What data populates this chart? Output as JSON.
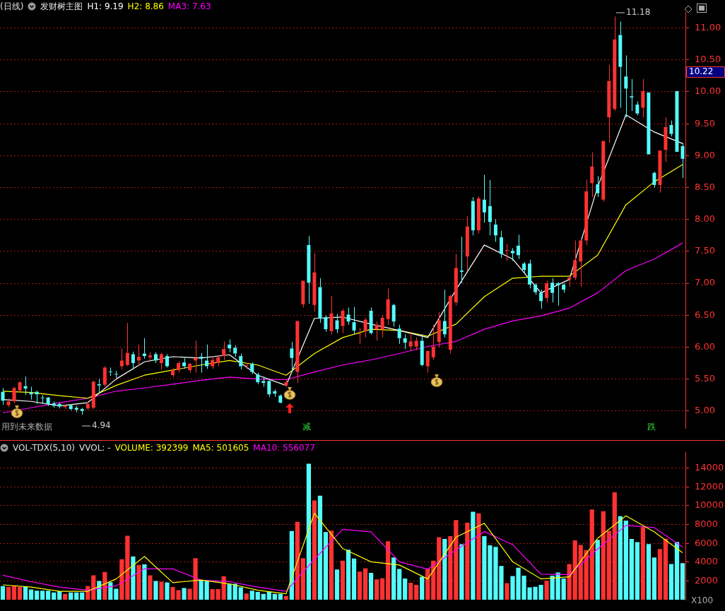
{
  "chart_data": [
    {
      "type": "candlestick",
      "title": "发财树主图",
      "subtitle": "(日线)",
      "categories": [
        null,
        null,
        null,
        null,
        null,
        null,
        null,
        null,
        null,
        null,
        null,
        null,
        null,
        null,
        null,
        null,
        null,
        null,
        null,
        null,
        null,
        null,
        null,
        null,
        null,
        null,
        null,
        null,
        null,
        null,
        null,
        null,
        null,
        null,
        null,
        null,
        null,
        null,
        null,
        null,
        null,
        null,
        null,
        null,
        null,
        null,
        null,
        null,
        null,
        null,
        null,
        null,
        null,
        null,
        null,
        null,
        null,
        null,
        null,
        null,
        null,
        null,
        null,
        null,
        null,
        null,
        null,
        null,
        null,
        null,
        null,
        null,
        null,
        null,
        null,
        null,
        null,
        null,
        null,
        null,
        null,
        null,
        null,
        null,
        null,
        null,
        null,
        null,
        null,
        null,
        null,
        null,
        null,
        null,
        null,
        null,
        null,
        null,
        null,
        null,
        null,
        null,
        null,
        null,
        null,
        null,
        null,
        null,
        null,
        null,
        null,
        null,
        null,
        null,
        null,
        null,
        null,
        null,
        null,
        null,
        null
      ],
      "ohlc": [
        [
          5.3,
          5.36,
          5.1,
          5.16
        ],
        [
          5.09,
          5.2,
          5.06,
          5.15
        ],
        [
          5.15,
          5.38,
          5.12,
          5.36
        ],
        [
          5.32,
          5.46,
          5.3,
          5.45
        ],
        [
          5.39,
          5.54,
          5.25,
          5.35
        ],
        [
          5.29,
          5.38,
          5.18,
          5.26
        ],
        [
          5.3,
          5.32,
          5.11,
          5.26
        ],
        [
          5.21,
          5.25,
          5.11,
          5.2
        ],
        [
          5.21,
          5.22,
          5.08,
          5.11
        ],
        [
          5.12,
          5.15,
          5.05,
          5.08
        ],
        [
          5.11,
          5.13,
          5.04,
          5.07
        ],
        [
          5.06,
          5.1,
          5.03,
          5.08
        ],
        [
          5.09,
          5.1,
          5.01,
          5.03
        ],
        [
          5.05,
          5.08,
          4.98,
          5.02
        ],
        [
          5.03,
          5.05,
          4.94,
          5.0
        ],
        [
          5.04,
          5.15,
          5.02,
          5.11
        ],
        [
          5.05,
          5.47,
          5.03,
          5.46
        ],
        [
          5.42,
          5.5,
          5.28,
          5.4
        ],
        [
          5.41,
          5.7,
          5.38,
          5.68
        ],
        [
          5.62,
          5.68,
          5.55,
          5.61
        ],
        [
          5.58,
          5.63,
          5.52,
          5.57
        ],
        [
          5.7,
          5.98,
          5.65,
          5.79
        ],
        [
          5.72,
          6.38,
          5.7,
          5.91
        ],
        [
          5.89,
          5.93,
          5.65,
          5.75
        ],
        [
          5.79,
          6.04,
          5.71,
          5.85
        ],
        [
          5.9,
          6.14,
          5.82,
          5.86
        ],
        [
          5.84,
          5.92,
          5.8,
          5.87
        ],
        [
          5.89,
          5.92,
          5.75,
          5.79
        ],
        [
          5.75,
          5.91,
          5.65,
          5.89
        ],
        [
          5.86,
          5.89,
          5.68,
          5.7
        ],
        [
          5.56,
          5.67,
          5.53,
          5.64
        ],
        [
          5.64,
          5.78,
          5.6,
          5.75
        ],
        [
          5.76,
          5.83,
          5.66,
          5.7
        ],
        [
          5.64,
          5.75,
          5.6,
          5.74
        ],
        [
          5.79,
          6.1,
          5.6,
          5.83
        ],
        [
          5.85,
          5.91,
          5.6,
          5.82
        ],
        [
          5.79,
          6.04,
          5.66,
          5.7
        ],
        [
          5.7,
          5.86,
          5.66,
          5.8
        ],
        [
          5.75,
          5.86,
          5.7,
          5.84
        ],
        [
          5.86,
          6.09,
          5.8,
          5.97
        ],
        [
          6.04,
          6.12,
          5.92,
          5.98
        ],
        [
          5.99,
          6.03,
          5.85,
          5.9
        ],
        [
          5.86,
          5.9,
          5.65,
          5.7
        ],
        [
          5.71,
          5.75,
          5.66,
          5.72
        ],
        [
          5.74,
          5.76,
          5.58,
          5.61
        ],
        [
          5.57,
          5.6,
          5.42,
          5.45
        ],
        [
          5.47,
          5.54,
          5.38,
          5.44
        ],
        [
          5.47,
          5.48,
          5.22,
          5.26
        ],
        [
          5.31,
          5.34,
          5.22,
          5.27
        ],
        [
          5.24,
          5.26,
          5.12,
          5.13
        ],
        [
          5.4,
          5.5,
          5.38,
          5.45
        ],
        [
          5.98,
          6.08,
          5.61,
          5.83
        ],
        [
          5.61,
          6.41,
          5.44,
          6.41
        ],
        [
          6.67,
          7.04,
          6.62,
          7.04
        ],
        [
          7.6,
          7.74,
          6.68,
          7.01
        ],
        [
          6.66,
          7.47,
          6.55,
          7.17
        ],
        [
          6.94,
          7.08,
          6.38,
          6.45
        ],
        [
          6.47,
          6.5,
          6.24,
          6.28
        ],
        [
          6.25,
          6.8,
          6.2,
          6.53
        ],
        [
          6.42,
          6.52,
          6.22,
          6.28
        ],
        [
          6.33,
          6.6,
          6.22,
          6.57
        ],
        [
          6.51,
          6.62,
          6.35,
          6.4
        ],
        [
          6.39,
          6.63,
          6.2,
          6.26
        ],
        [
          6.2,
          6.3,
          6.05,
          6.21
        ],
        [
          6.25,
          6.46,
          6.15,
          6.43
        ],
        [
          6.57,
          6.62,
          6.2,
          6.22
        ],
        [
          6.28,
          6.4,
          6.1,
          6.35
        ],
        [
          6.28,
          6.5,
          6.15,
          6.46
        ],
        [
          6.44,
          6.92,
          6.35,
          6.75
        ],
        [
          6.66,
          6.68,
          6.32,
          6.4
        ],
        [
          6.29,
          6.35,
          6.05,
          6.14
        ],
        [
          6.14,
          6.2,
          5.97,
          6.07
        ],
        [
          6.01,
          6.22,
          5.95,
          6.09
        ],
        [
          6.01,
          6.15,
          5.95,
          6.1
        ],
        [
          6.1,
          6.2,
          5.7,
          5.72
        ],
        [
          5.7,
          5.94,
          5.6,
          5.94
        ],
        [
          5.84,
          6.35,
          5.8,
          6.01
        ],
        [
          6.08,
          6.55,
          6.0,
          6.42
        ],
        [
          6.41,
          6.9,
          6.15,
          6.2
        ],
        [
          5.96,
          6.82,
          5.9,
          6.8
        ],
        [
          6.7,
          7.46,
          6.65,
          7.24
        ],
        [
          7.2,
          7.73,
          7.0,
          7.18
        ],
        [
          7.42,
          8.05,
          7.2,
          7.89
        ],
        [
          8.29,
          8.35,
          7.75,
          7.83
        ],
        [
          7.83,
          8.36,
          7.78,
          8.33
        ],
        [
          8.31,
          8.7,
          7.95,
          8.11
        ],
        [
          8.21,
          8.62,
          7.75,
          7.96
        ],
        [
          7.92,
          8.0,
          7.65,
          7.75
        ],
        [
          7.72,
          7.82,
          7.4,
          7.46
        ],
        [
          7.51,
          7.62,
          7.35,
          7.52
        ],
        [
          7.51,
          7.55,
          7.35,
          7.47
        ],
        [
          7.59,
          7.76,
          7.38,
          7.44
        ],
        [
          7.31,
          7.33,
          7.15,
          7.21
        ],
        [
          7.31,
          7.37,
          6.92,
          6.98
        ],
        [
          6.98,
          7.0,
          6.82,
          6.86
        ],
        [
          6.85,
          6.9,
          6.6,
          6.72
        ],
        [
          6.77,
          7.04,
          6.7,
          7.0
        ],
        [
          7.01,
          7.08,
          6.7,
          6.85
        ],
        [
          7.0,
          7.02,
          6.65,
          6.97
        ],
        [
          6.98,
          7.0,
          6.85,
          6.9
        ],
        [
          7.06,
          7.12,
          6.95,
          7.09
        ],
        [
          7.09,
          7.67,
          7.05,
          7.36
        ],
        [
          7.34,
          7.7,
          6.95,
          7.67
        ],
        [
          7.67,
          8.62,
          7.6,
          8.44
        ],
        [
          8.57,
          9.05,
          8.35,
          8.83
        ],
        [
          8.55,
          8.68,
          8.35,
          8.41
        ],
        [
          8.31,
          9.23,
          8.28,
          9.23
        ],
        [
          9.6,
          10.42,
          9.2,
          10.17
        ],
        [
          9.73,
          11.18,
          9.7,
          10.82
        ],
        [
          10.89,
          11.1,
          9.75,
          10.39
        ],
        [
          10.24,
          10.57,
          9.6,
          10.05
        ],
        [
          9.93,
          10.2,
          9.7,
          9.91
        ],
        [
          9.8,
          9.85,
          9.63,
          9.66
        ],
        [
          9.75,
          10.2,
          9.6,
          10.01
        ],
        [
          9.99,
          9.99,
          9.02,
          9.02
        ],
        [
          8.73,
          8.75,
          8.5,
          8.54
        ],
        [
          8.54,
          9.08,
          8.42,
          9.08
        ],
        [
          9.09,
          9.6,
          8.9,
          9.45
        ],
        [
          9.48,
          9.55,
          9.3,
          9.34
        ],
        [
          10.01,
          10.01,
          9.06,
          9.06
        ],
        [
          9.15,
          9.2,
          8.65,
          8.95
        ]
      ],
      "colors": [
        "#54fcfc",
        "#ff3232",
        "#ff3232",
        "#ff3232",
        "#54fcfc",
        "#54fcfc",
        "#54fcfc",
        "#54fcfc",
        "#54fcfc",
        "#54fcfc",
        "#54fcfc",
        "#ff3232",
        "#54fcfc",
        "#54fcfc",
        "#54fcfc",
        "#ff3232",
        "#ff3232",
        "#54fcfc",
        "#ff3232",
        "#54fcfc",
        "#54fcfc",
        "#ff3232",
        "#ff3232",
        "#54fcfc",
        "#ff3232",
        "#54fcfc",
        "#ff3232",
        "#54fcfc",
        "#ff3232",
        "#54fcfc",
        "#ff3232",
        "#ff3232",
        "#54fcfc",
        "#ff3232",
        "#ff3232",
        "#54fcfc",
        "#54fcfc",
        "#ff3232",
        "#ff3232",
        "#ff3232",
        "#54fcfc",
        "#54fcfc",
        "#54fcfc",
        "#ff3232",
        "#54fcfc",
        "#54fcfc",
        "#54fcfc",
        "#54fcfc",
        "#54fcfc",
        "#54fcfc",
        "#ff3232",
        "#54fcfc",
        "#ff3232",
        "#ff3232",
        "#54fcfc",
        "#ff3232",
        "#54fcfc",
        "#54fcfc",
        "#ff3232",
        "#54fcfc",
        "#ff3232",
        "#54fcfc",
        "#54fcfc",
        "#ff3232",
        "#ff3232",
        "#54fcfc",
        "#ff3232",
        "#ff3232",
        "#ff3232",
        "#54fcfc",
        "#54fcfc",
        "#54fcfc",
        "#ff3232",
        "#ff3232",
        "#54fcfc",
        "#ff3232",
        "#ff3232",
        "#ff3232",
        "#54fcfc",
        "#ff3232",
        "#ff3232",
        "#54fcfc",
        "#ff3232",
        "#54fcfc",
        "#ff3232",
        "#54fcfc",
        "#54fcfc",
        "#54fcfc",
        "#54fcfc",
        "#ff3232",
        "#54fcfc",
        "#54fcfc",
        "#54fcfc",
        "#54fcfc",
        "#54fcfc",
        "#54fcfc",
        "#ff3232",
        "#54fcfc",
        "#54fcfc",
        "#54fcfc",
        "#ff3232",
        "#ff3232",
        "#ff3232",
        "#ff3232",
        "#ff3232",
        "#54fcfc",
        "#ff3232",
        "#ff3232",
        "#ff3232",
        "#54fcfc",
        "#54fcfc",
        "#54fcfc",
        "#54fcfc",
        "#ff3232",
        "#54fcfc",
        "#54fcfc",
        "#ff3232",
        "#ff3232",
        "#54fcfc",
        "#54fcfc",
        "#54fcfc"
      ],
      "series": [
        {
          "name": "H1: 9.19",
          "type": "line",
          "color": "#ffffff",
          "values": [
            5.18,
            null,
            null,
            null,
            null,
            5.15,
            null,
            null,
            null,
            null,
            5.08,
            null,
            null,
            null,
            null,
            5.13,
            null,
            null,
            null,
            null,
            5.5,
            null,
            null,
            null,
            null,
            5.77,
            null,
            null,
            null,
            null,
            5.85,
            null,
            null,
            null,
            null,
            5.83,
            null,
            null,
            null,
            null,
            5.88,
            null,
            null,
            null,
            null,
            5.56,
            null,
            null,
            null,
            null,
            5.4,
            null,
            null,
            null,
            null,
            6.45,
            null,
            null,
            null,
            null,
            6.47,
            null,
            null,
            null,
            null,
            6.36,
            null,
            null,
            null,
            null,
            6.26,
            null,
            null,
            null,
            null,
            6.15,
            null,
            null,
            null,
            null,
            6.9,
            null,
            null,
            null,
            null,
            7.6,
            null,
            null,
            null,
            null,
            7.38,
            null,
            null,
            null,
            null,
            6.85,
            null,
            null,
            null,
            null,
            7.06,
            null,
            null,
            null,
            null,
            8.51,
            null,
            null,
            null,
            null,
            9.64,
            null,
            null,
            null,
            null,
            9.37,
            null,
            null,
            null,
            null,
            9.19
          ]
        },
        {
          "name": "H2: 8.86",
          "type": "line",
          "color": "#ffff00",
          "values": [
            5.31,
            null,
            null,
            null,
            null,
            5.29,
            null,
            null,
            null,
            null,
            5.24,
            null,
            null,
            null,
            null,
            5.2,
            null,
            null,
            null,
            null,
            5.4,
            null,
            null,
            null,
            null,
            5.56,
            null,
            null,
            null,
            null,
            5.64,
            null,
            null,
            null,
            null,
            5.72,
            null,
            null,
            null,
            null,
            5.79,
            null,
            null,
            null,
            null,
            5.72,
            null,
            null,
            null,
            null,
            5.56,
            null,
            null,
            null,
            null,
            5.9,
            null,
            null,
            null,
            null,
            6.15,
            null,
            null,
            null,
            null,
            6.28,
            null,
            null,
            null,
            null,
            6.26,
            null,
            null,
            null,
            null,
            6.17,
            null,
            null,
            null,
            null,
            6.36,
            null,
            null,
            null,
            null,
            6.79,
            null,
            null,
            null,
            null,
            7.08,
            null,
            null,
            null,
            null,
            7.11,
            null,
            null,
            null,
            null,
            7.11,
            null,
            null,
            null,
            null,
            7.44,
            null,
            null,
            null,
            null,
            8.23,
            null,
            null,
            null,
            null,
            8.59,
            null,
            null,
            null,
            null,
            8.86
          ]
        },
        {
          "name": "MA3: 7.63",
          "type": "line",
          "color": "#ff00ff",
          "values": [
            4.97,
            null,
            null,
            null,
            null,
            5.05,
            null,
            null,
            null,
            null,
            5.13,
            null,
            null,
            null,
            null,
            5.2,
            null,
            null,
            null,
            null,
            5.31,
            null,
            null,
            null,
            null,
            5.36,
            null,
            null,
            null,
            null,
            5.42,
            null,
            null,
            null,
            null,
            5.48,
            null,
            null,
            null,
            null,
            5.53,
            null,
            null,
            null,
            null,
            5.5,
            null,
            null,
            null,
            null,
            5.49,
            null,
            null,
            null,
            null,
            5.61,
            null,
            null,
            null,
            null,
            5.72,
            null,
            null,
            null,
            null,
            5.8,
            null,
            null,
            null,
            null,
            5.9,
            null,
            null,
            null,
            null,
            6.01,
            null,
            null,
            null,
            null,
            6.09,
            null,
            null,
            null,
            null,
            6.28,
            null,
            null,
            null,
            null,
            6.41,
            null,
            null,
            null,
            null,
            6.49,
            null,
            null,
            null,
            null,
            6.61,
            null,
            null,
            null,
            null,
            6.85,
            null,
            null,
            null,
            null,
            7.2,
            null,
            null,
            null,
            null,
            7.38,
            null,
            null,
            null,
            null,
            7.63
          ]
        }
      ],
      "ylim": [
        4.73,
        11.25
      ],
      "yticks": [
        {
          "value": 5,
          "label": "5.00"
        },
        {
          "value": 5.5,
          "label": "5.50"
        },
        {
          "value": 6,
          "label": "6.00"
        },
        {
          "value": 6.5,
          "label": "6.50"
        },
        {
          "value": 7,
          "label": "7.00"
        },
        {
          "value": 7.5,
          "label": "7.50"
        },
        {
          "value": 8,
          "label": "8.00"
        },
        {
          "value": 8.5,
          "label": "8.50"
        },
        {
          "value": 9,
          "label": "9.00"
        },
        {
          "value": 9.5,
          "label": "9.50"
        },
        {
          "value": 10,
          "label": "10.00"
        },
        {
          "value": 10.5,
          "label": "10.50"
        },
        {
          "value": 11,
          "label": "11.00"
        }
      ],
      "grid": "y",
      "legend": "top left",
      "tick_labels": "y",
      "annotations": [
        "11.18",
        "10.22",
        "4.94",
        "减",
        "跌",
        "用到未来数据"
      ]
    },
    {
      "type": "bar",
      "title": "VOL-TDX(5,10)",
      "subtitle": "VVOL: -",
      "categories": [
        null,
        null,
        null,
        null,
        null,
        null,
        null,
        null,
        null,
        null,
        null,
        null,
        null,
        null,
        null,
        null,
        null,
        null,
        null,
        null,
        null,
        null,
        null,
        null,
        null,
        null,
        null,
        null,
        null,
        null,
        null,
        null,
        null,
        null,
        null,
        null,
        null,
        null,
        null,
        null,
        null,
        null,
        null,
        null,
        null,
        null,
        null,
        null,
        null,
        null,
        null,
        null,
        null,
        null,
        null,
        null,
        null,
        null,
        null,
        null,
        null,
        null,
        null,
        null,
        null,
        null,
        null,
        null,
        null,
        null,
        null,
        null,
        null,
        null,
        null,
        null,
        null,
        null,
        null,
        null,
        null,
        null,
        null,
        null,
        null,
        null,
        null,
        null,
        null,
        null,
        null,
        null,
        null,
        null,
        null,
        null,
        null,
        null,
        null,
        null,
        null,
        null,
        null,
        null,
        null,
        null,
        null,
        null,
        null,
        null,
        null,
        null,
        null,
        null,
        null,
        null,
        null,
        null,
        null,
        null,
        null
      ],
      "series": [
        {
          "colors": [
            "#54fcfc",
            "#ff3232",
            "#ff3232",
            "#ff3232",
            "#54fcfc",
            "#54fcfc",
            "#54fcfc",
            "#54fcfc",
            "#54fcfc",
            "#54fcfc",
            "#54fcfc",
            "#ff3232",
            "#54fcfc",
            "#54fcfc",
            "#54fcfc",
            "#ff3232",
            "#ff3232",
            "#54fcfc",
            "#ff3232",
            "#54fcfc",
            "#54fcfc",
            "#ff3232",
            "#ff3232",
            "#54fcfc",
            "#ff3232",
            "#54fcfc",
            "#ff3232",
            "#54fcfc",
            "#ff3232",
            "#54fcfc",
            "#ff3232",
            "#ff3232",
            "#54fcfc",
            "#ff3232",
            "#ff3232",
            "#54fcfc",
            "#54fcfc",
            "#ff3232",
            "#ff3232",
            "#ff3232",
            "#54fcfc",
            "#54fcfc",
            "#54fcfc",
            "#ff3232",
            "#54fcfc",
            "#54fcfc",
            "#54fcfc",
            "#54fcfc",
            "#54fcfc",
            "#54fcfc",
            "#ff3232",
            "#54fcfc",
            "#ff3232",
            "#ff3232",
            "#54fcfc",
            "#ff3232",
            "#54fcfc",
            "#54fcfc",
            "#ff3232",
            "#54fcfc",
            "#ff3232",
            "#54fcfc",
            "#54fcfc",
            "#ff3232",
            "#ff3232",
            "#54fcfc",
            "#ff3232",
            "#ff3232",
            "#ff3232",
            "#54fcfc",
            "#54fcfc",
            "#54fcfc",
            "#ff3232",
            "#ff3232",
            "#54fcfc",
            "#ff3232",
            "#ff3232",
            "#ff3232",
            "#54fcfc",
            "#ff3232",
            "#ff3232",
            "#54fcfc",
            "#ff3232",
            "#54fcfc",
            "#ff3232",
            "#54fcfc",
            "#54fcfc",
            "#54fcfc",
            "#54fcfc",
            "#ff3232",
            "#54fcfc",
            "#54fcfc",
            "#54fcfc",
            "#54fcfc",
            "#54fcfc",
            "#54fcfc",
            "#ff3232",
            "#54fcfc",
            "#54fcfc",
            "#54fcfc",
            "#ff3232",
            "#ff3232",
            "#ff3232",
            "#ff3232",
            "#ff3232",
            "#54fcfc",
            "#ff3232",
            "#ff3232",
            "#ff3232",
            "#54fcfc",
            "#54fcfc",
            "#54fcfc",
            "#54fcfc",
            "#ff3232",
            "#54fcfc",
            "#54fcfc",
            "#ff3232",
            "#ff3232",
            "#54fcfc",
            "#54fcfc",
            "#54fcfc"
          ],
          "values": [
            1450,
            1360,
            1520,
            1360,
            1430,
            1110,
            980,
            980,
            980,
            790,
            910,
            640,
            790,
            790,
            790,
            1450,
            2610,
            2000,
            2950,
            1880,
            1180,
            4310,
            6810,
            4610,
            3700,
            3770,
            2610,
            2000,
            1930,
            1860,
            1360,
            1020,
            1250,
            1180,
            4430,
            2040,
            2000,
            1140,
            1140,
            2500,
            1700,
            1700,
            1320,
            680,
            980,
            840,
            640,
            860,
            640,
            640,
            410,
            7310,
            8290,
            4430,
            14460,
            10560,
            11050,
            7200,
            7350,
            3220,
            4150,
            5330,
            4380,
            3000,
            3360,
            2860,
            2180,
            2290,
            6220,
            4490,
            3270,
            2270,
            1820,
            1590,
            2450,
            3310,
            4150,
            6650,
            6470,
            6760,
            8470,
            5900,
            8190,
            9350,
            9190,
            6760,
            5790,
            5630,
            3590,
            1770,
            2520,
            3400,
            2570,
            1320,
            1380,
            1590,
            2040,
            2570,
            2900,
            2270,
            3810,
            6310,
            5830,
            5290,
            9600,
            6380,
            9400,
            7330,
            11420,
            8880,
            8420,
            6470,
            6130,
            7720,
            5920,
            4490,
            5400,
            6490,
            3810,
            6150,
            3900
          ]
        },
        {
          "name": "MA5: 501605",
          "type": "line",
          "color": "#ffff00",
          "values": [
            1590,
            null,
            null,
            null,
            null,
            1360,
            null,
            null,
            null,
            null,
            910,
            null,
            null,
            null,
            null,
            910,
            null,
            null,
            null,
            null,
            2220,
            null,
            null,
            null,
            null,
            4610,
            null,
            null,
            null,
            null,
            1820,
            null,
            null,
            null,
            null,
            2110,
            null,
            null,
            null,
            null,
            1700,
            null,
            null,
            null,
            null,
            1020,
            null,
            null,
            null,
            null,
            640,
            null,
            null,
            null,
            null,
            9190,
            null,
            null,
            null,
            null,
            5450,
            null,
            null,
            null,
            null,
            4040,
            null,
            null,
            null,
            null,
            3700,
            null,
            null,
            null,
            null,
            2220,
            null,
            null,
            null,
            null,
            6650,
            null,
            null,
            null,
            null,
            8130,
            null,
            null,
            null,
            null,
            4040,
            null,
            null,
            null,
            null,
            2220,
            null,
            null,
            null,
            null,
            2450,
            null,
            null,
            null,
            null,
            6540,
            null,
            null,
            null,
            null,
            8920,
            null,
            null,
            null,
            null,
            7220,
            null,
            null,
            null,
            null,
            5000
          ]
        },
        {
          "name": "MA10: 556077",
          "type": "line",
          "color": "#ff00ff",
          "values": [
            2610,
            null,
            null,
            null,
            null,
            1930,
            null,
            null,
            null,
            null,
            1360,
            null,
            null,
            null,
            null,
            1020,
            null,
            null,
            null,
            null,
            1480,
            null,
            null,
            null,
            null,
            3290,
            null,
            null,
            null,
            null,
            3290,
            null,
            null,
            null,
            null,
            2090,
            null,
            null,
            null,
            null,
            1930,
            null,
            null,
            null,
            null,
            1360,
            null,
            null,
            null,
            null,
            910,
            null,
            null,
            null,
            null,
            4310,
            null,
            null,
            null,
            null,
            7490,
            null,
            null,
            null,
            null,
            7220,
            null,
            null,
            null,
            null,
            4040,
            null,
            null,
            null,
            null,
            3250,
            null,
            null,
            null,
            null,
            5290,
            null,
            null,
            null,
            null,
            7260,
            null,
            null,
            null,
            null,
            5860,
            null,
            null,
            null,
            null,
            2720,
            null,
            null,
            null,
            null,
            2680,
            null,
            null,
            null,
            null,
            5400,
            null,
            null,
            null,
            null,
            7900,
            null,
            null,
            null,
            null,
            7670,
            null,
            null,
            null,
            null,
            5600
          ]
        }
      ],
      "ylim": [
        0,
        15630
      ],
      "yticks": [
        2000,
        4000,
        6000,
        8000,
        10000,
        12000,
        14000
      ],
      "grid": "y",
      "legend": "top left",
      "tick_labels": "y",
      "annotations": [
        "VOLUME: 392399",
        "X100"
      ]
    }
  ]
}
